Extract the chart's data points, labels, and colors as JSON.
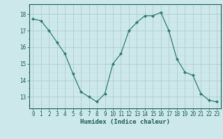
{
  "x": [
    0,
    1,
    2,
    3,
    4,
    5,
    6,
    7,
    8,
    9,
    10,
    11,
    12,
    13,
    14,
    15,
    16,
    17,
    18,
    19,
    20,
    21,
    22,
    23
  ],
  "y": [
    17.7,
    17.6,
    17.0,
    16.3,
    15.6,
    14.4,
    13.3,
    13.0,
    12.7,
    13.2,
    15.0,
    15.6,
    17.0,
    17.5,
    17.9,
    17.9,
    18.1,
    17.0,
    15.3,
    14.5,
    14.3,
    13.2,
    12.8,
    12.7
  ],
  "line_color": "#2e7d6e",
  "marker": "D",
  "marker_size": 2,
  "bg_color": "#cde8ea",
  "grid_color": "#b0ccce",
  "grid_color_minor": "#c4dfe1",
  "xlabel": "Humidex (Indice chaleur)",
  "xlabel_fontsize": 6.5,
  "ylabel_ticks": [
    13,
    14,
    15,
    16,
    17,
    18
  ],
  "ylim": [
    12.3,
    18.6
  ],
  "xlim": [
    -0.5,
    23.5
  ],
  "tick_fontsize": 5.5,
  "tick_color": "#1a5c52",
  "spine_color": "#1a5c52"
}
